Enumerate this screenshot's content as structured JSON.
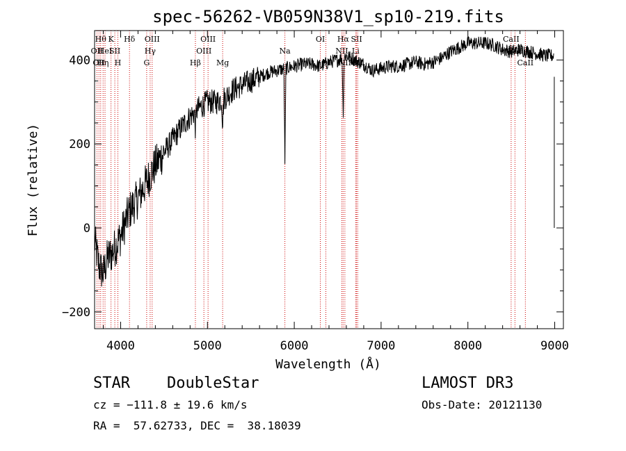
{
  "chart_data": {
    "type": "line",
    "title": "spec-56262-VB059N38V1_sp10-219.fits",
    "xlabel": "Wavelength (Å)",
    "ylabel": "Flux (relative)",
    "xlim": [
      3700,
      9100
    ],
    "ylim": [
      -240,
      470
    ],
    "x_ticks": [
      4000,
      5000,
      6000,
      7000,
      8000,
      9000
    ],
    "y_ticks": [
      -200,
      0,
      200,
      400
    ],
    "spectrum_envelope": {
      "x": [
        3700,
        3750,
        3800,
        3850,
        3900,
        3950,
        4000,
        4050,
        4100,
        4200,
        4300,
        4400,
        4500,
        4600,
        4700,
        4800,
        4900,
        5000,
        5100,
        5200,
        5300,
        5400,
        5500,
        5600,
        5700,
        5800,
        5900,
        6000,
        6100,
        6200,
        6300,
        6400,
        6500,
        6600,
        6700,
        6800,
        6900,
        7000,
        7100,
        7200,
        7300,
        7400,
        7500,
        7600,
        7700,
        7800,
        7900,
        8000,
        8100,
        8200,
        8300,
        8400,
        8500,
        8600,
        8700,
        8800,
        8900,
        8990
      ],
      "y": [
        -30,
        -90,
        -110,
        -70,
        -60,
        -40,
        -20,
        10,
        40,
        70,
        110,
        150,
        180,
        210,
        240,
        265,
        285,
        300,
        300,
        310,
        330,
        340,
        350,
        360,
        370,
        375,
        380,
        385,
        390,
        390,
        385,
        395,
        400,
        410,
        400,
        390,
        375,
        380,
        385,
        385,
        390,
        395,
        390,
        395,
        405,
        420,
        430,
        440,
        440,
        440,
        435,
        425,
        420,
        425,
        420,
        415,
        410,
        410
      ],
      "noise": 30
    },
    "absorption_features": [
      {
        "x": 5892,
        "depth": 220
      },
      {
        "x": 6563,
        "depth": 140
      },
      {
        "x": 5175,
        "depth": 60
      },
      {
        "x": 4861,
        "depth": 40
      }
    ],
    "end_segment": {
      "x": 8995,
      "y_from": 360,
      "y_to": 0
    },
    "line_markers": [
      {
        "x": 3727,
        "label": "OII",
        "row": 2
      },
      {
        "x": 3750,
        "label": "OII",
        "row": 3
      },
      {
        "x": 3770,
        "label": "Hθ",
        "row": 1
      },
      {
        "x": 3798,
        "label": "Hη",
        "row": 3
      },
      {
        "x": 3820,
        "label": "HeI",
        "row": 2
      },
      {
        "x": 3889,
        "label": "K",
        "row": 1
      },
      {
        "x": 3933,
        "label": "SII",
        "row": 2
      },
      {
        "x": 3968,
        "label": "H",
        "row": 3
      },
      {
        "x": 4102,
        "label": "Hδ",
        "row": 1
      },
      {
        "x": 4300,
        "label": "G",
        "row": 3
      },
      {
        "x": 4340,
        "label": "Hγ",
        "row": 2
      },
      {
        "x": 4363,
        "label": "OIII",
        "row": 1
      },
      {
        "x": 4861,
        "label": "Hβ",
        "row": 3
      },
      {
        "x": 4959,
        "label": "OIII",
        "row": 2
      },
      {
        "x": 5007,
        "label": "OIII",
        "row": 1
      },
      {
        "x": 5175,
        "label": "Mg",
        "row": 3
      },
      {
        "x": 5892,
        "label": "Na",
        "row": 2
      },
      {
        "x": 6300,
        "label": "OI",
        "row": 1
      },
      {
        "x": 6364,
        "label": "OI",
        "row": 3
      },
      {
        "x": 6548,
        "label": "NII",
        "row": 2
      },
      {
        "x": 6563,
        "label": "Hα",
        "row": 1
      },
      {
        "x": 6583,
        "label": "NII",
        "row": 3
      },
      {
        "x": 6707,
        "label": "Li",
        "row": 2
      },
      {
        "x": 6717,
        "label": "SII",
        "row": 1
      },
      {
        "x": 6731,
        "label": "SII",
        "row": 3
      },
      {
        "x": 8498,
        "label": "CaII",
        "row": 1
      },
      {
        "x": 8542,
        "label": "CaII",
        "row": 2
      },
      {
        "x": 8662,
        "label": "CaII",
        "row": 3
      }
    ],
    "colors": {
      "spectrum": "#000000",
      "markers": "#cc0000",
      "axes": "#000000"
    }
  },
  "info": {
    "class_label": "STAR",
    "subclass_label": "DoubleStar",
    "survey": "LAMOST DR3",
    "cz": "cz = −111.8 ± 19.6 km/s",
    "obs_date": "Obs-Date: 20121130",
    "radec": "RA =  57.62733, DEC =  38.18039"
  }
}
